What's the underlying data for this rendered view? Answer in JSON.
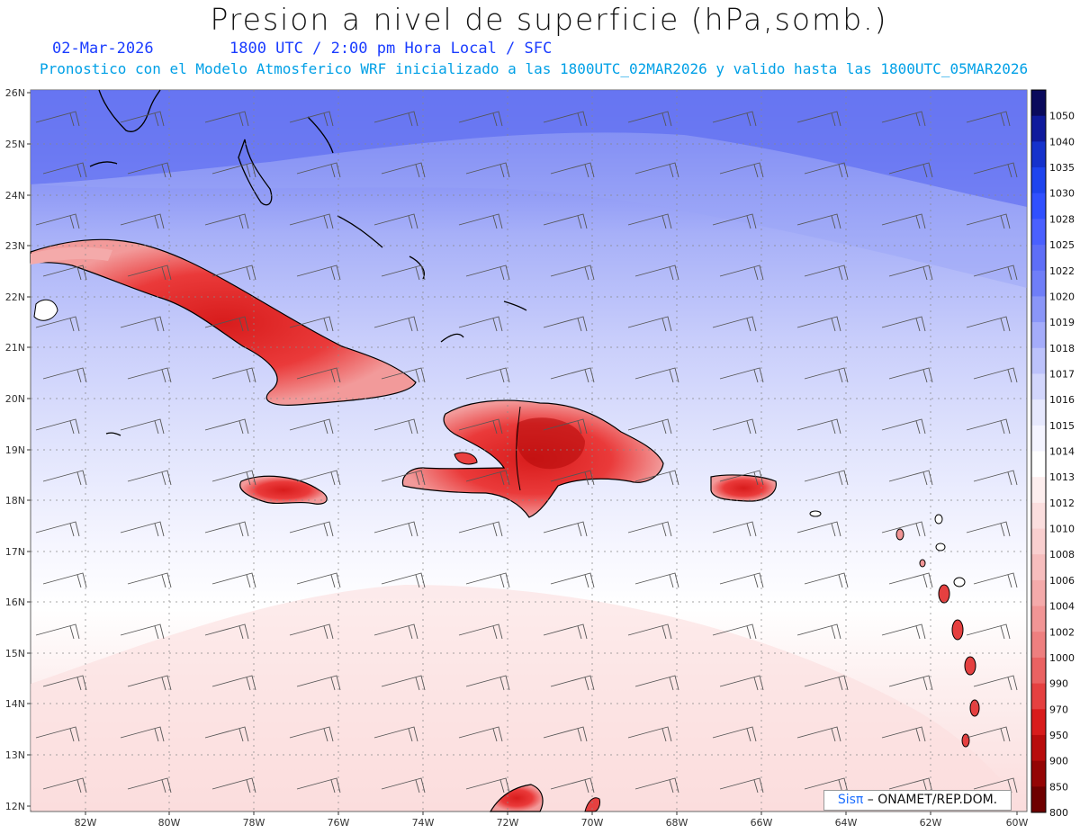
{
  "header": {
    "title": "Presion a nivel de superficie (hPa,somb.)",
    "date": "02-Mar-2026",
    "time_info": "1800 UTC / 2:00 pm Hora Local / SFC",
    "forecast_info": "Pronostico con el Modelo Atmosferico WRF inicializado a las 1800UTC_02MAR2026 y valido hasta las  1800UTC_05MAR2026"
  },
  "map": {
    "lat_labels": [
      "26N",
      "25N",
      "24N",
      "23N",
      "22N",
      "21N",
      "20N",
      "19N",
      "18N",
      "17N",
      "16N",
      "15N",
      "14N",
      "13N",
      "12N"
    ],
    "lon_labels": [
      "82W",
      "80W",
      "78W",
      "76W",
      "74W",
      "72W",
      "70W",
      "68W",
      "66W",
      "64W",
      "62W",
      "60W"
    ],
    "lat_range": [
      12,
      26
    ],
    "lon_range": [
      -83.2,
      -60
    ],
    "features": {
      "high_pressure_north": "blue",
      "low_pressure_islands": [
        "Cuba",
        "Hispaniola",
        "Jamaica",
        "Puerto Rico",
        "Lesser Antilles"
      ]
    }
  },
  "colorbar": {
    "labels": [
      "1050",
      "1040",
      "1035",
      "1030",
      "1028",
      "1025",
      "1022",
      "1020",
      "1019",
      "1018",
      "1017",
      "1016",
      "1015",
      "1014",
      "1013",
      "1012",
      "1010",
      "1008",
      "1006",
      "1004",
      "1002",
      "1000",
      "990",
      "970",
      "950",
      "900",
      "850",
      "800"
    ],
    "colors": [
      "#0a0a5c",
      "#0f1a9c",
      "#1532cc",
      "#1e44ee",
      "#3050ff",
      "#4a60ff",
      "#5e6ef7",
      "#6f7ef8",
      "#8a96f8",
      "#a4acfa",
      "#bcc2fb",
      "#d2d6fc",
      "#e6e8fd",
      "#f4f4ff",
      "#ffffff",
      "#fdeeee",
      "#fbdede",
      "#f9cfcf",
      "#f6bdbd",
      "#f4aaaa",
      "#f19595",
      "#ee7f7f",
      "#ea6262",
      "#e54040",
      "#d81c1c",
      "#b80c0c",
      "#940505",
      "#6e0000"
    ]
  },
  "credit": {
    "brand": "Sisπ",
    "org": " – ONAMET/REP.DOM."
  }
}
